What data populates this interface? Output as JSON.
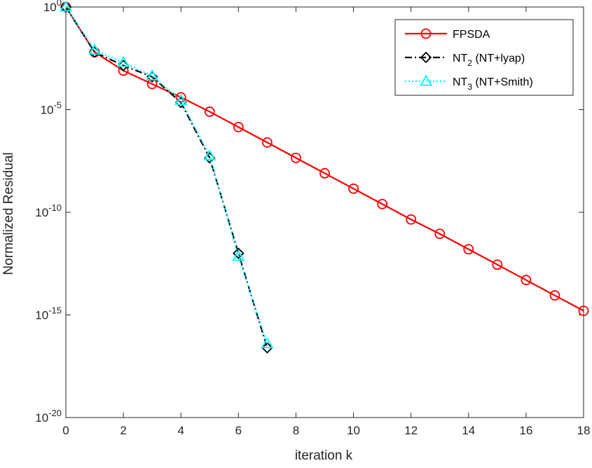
{
  "chart_data": {
    "type": "line",
    "title": "",
    "xlabel": "iteration k",
    "ylabel": "Normalized Residual",
    "xlim": [
      0,
      18
    ],
    "ylim_log10": [
      -20,
      0
    ],
    "y_scale": "log",
    "grid": false,
    "box": true,
    "legend_position": "top-right",
    "x_ticks": [
      "0",
      "2",
      "4",
      "6",
      "8",
      "10",
      "12",
      "14",
      "16",
      "18"
    ],
    "y_ticks": [
      {
        "base": "10",
        "exp": "0"
      },
      {
        "base": "10",
        "exp": "-5"
      },
      {
        "base": "10",
        "exp": "-10"
      },
      {
        "base": "10",
        "exp": "-15"
      },
      {
        "base": "10",
        "exp": "-20"
      }
    ],
    "series": [
      {
        "name": "FPSDA",
        "legend_main": "FPSDA",
        "legend_sub": "",
        "legend_rest": "",
        "color": "#ff0000",
        "line_style": "solid",
        "marker": "circle",
        "x": [
          0,
          1,
          2,
          3,
          4,
          5,
          6,
          7,
          8,
          9,
          10,
          11,
          12,
          13,
          14,
          15,
          16,
          17,
          18
        ],
        "log10_y": [
          0,
          -2.2,
          -3.1,
          -3.75,
          -4.4,
          -5.1,
          -5.85,
          -6.6,
          -7.35,
          -8.1,
          -8.85,
          -9.6,
          -10.35,
          -11.05,
          -11.8,
          -12.55,
          -13.3,
          -14.05,
          -14.8
        ]
      },
      {
        "name": "NT2 (NT+lyap)",
        "legend_main": "NT",
        "legend_sub": "2",
        "legend_rest": " (NT+lyap)",
        "color": "#000000",
        "line_style": "dashdot",
        "marker": "diamond",
        "x": [
          0,
          1,
          2,
          3,
          4,
          5,
          6,
          7
        ],
        "log10_y": [
          0,
          -2.2,
          -2.85,
          -3.4,
          -4.65,
          -7.35,
          -12.0,
          -16.6
        ]
      },
      {
        "name": "NT3 (NT+Smith)",
        "legend_main": "NT",
        "legend_sub": "3",
        "legend_rest": " (NT+Smith)",
        "color": "#00ffff",
        "line_style": "dotted",
        "marker": "triangle",
        "x": [
          0,
          1,
          2,
          3,
          4,
          5,
          6,
          7
        ],
        "log10_y": [
          0,
          -2.1,
          -2.7,
          -3.35,
          -4.55,
          -7.25,
          -12.15,
          -16.4
        ]
      }
    ]
  }
}
